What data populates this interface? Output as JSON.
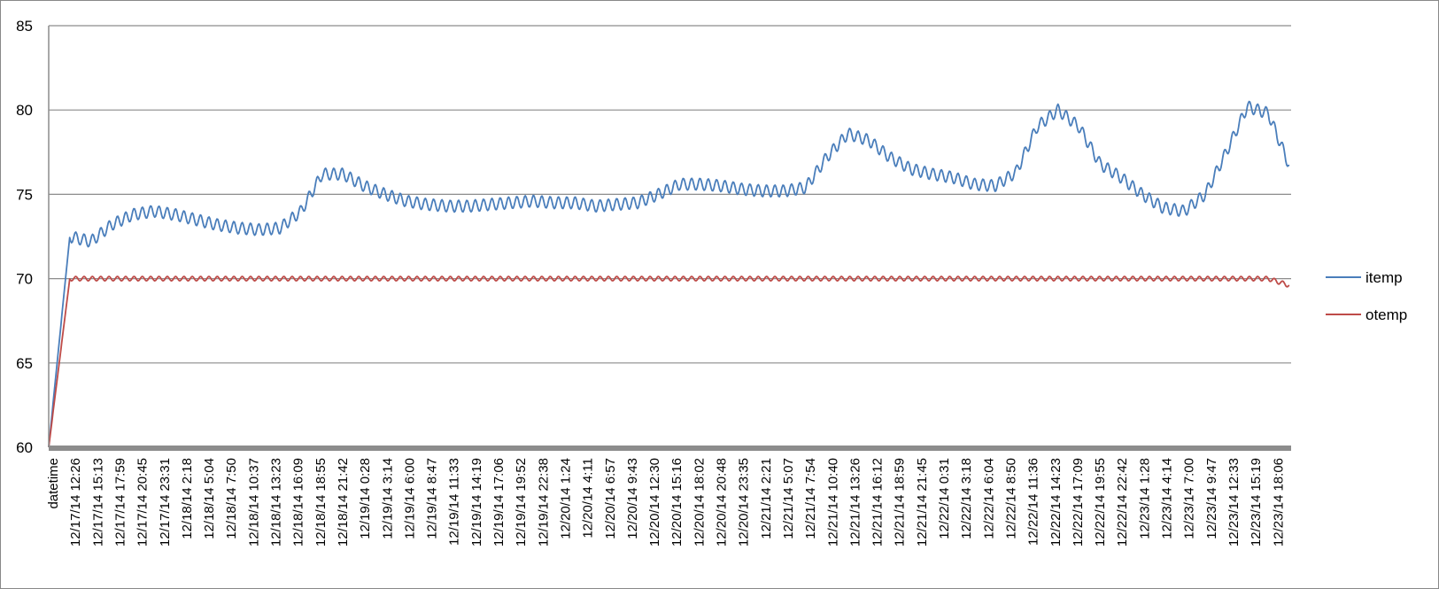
{
  "chart_data": {
    "type": "line",
    "title": "",
    "xlabel": "",
    "ylabel": "",
    "ylim": [
      60,
      85
    ],
    "yticks": [
      60,
      65,
      70,
      75,
      80,
      85
    ],
    "grid": true,
    "legend_position": "right",
    "x_tick_labels": [
      "datetime",
      "12/17/14 12:26",
      "12/17/14 15:13",
      "12/17/14 17:59",
      "12/17/14 20:45",
      "12/17/14 23:31",
      "12/18/14 2:18",
      "12/18/14 5:04",
      "12/18/14 7:50",
      "12/18/14 10:37",
      "12/18/14 13:23",
      "12/18/14 16:09",
      "12/18/14 18:55",
      "12/18/14 21:42",
      "12/19/14 0:28",
      "12/19/14 3:14",
      "12/19/14 6:00",
      "12/19/14 8:47",
      "12/19/14 11:33",
      "12/19/14 14:19",
      "12/19/14 17:06",
      "12/19/14 19:52",
      "12/19/14 22:38",
      "12/20/14 1:24",
      "12/20/14 4:11",
      "12/20/14 6:57",
      "12/20/14 9:43",
      "12/20/14 12:30",
      "12/20/14 15:16",
      "12/20/14 18:02",
      "12/20/14 20:48",
      "12/20/14 23:35",
      "12/21/14 2:21",
      "12/21/14 5:07",
      "12/21/14 7:54",
      "12/21/14 10:40",
      "12/21/14 13:26",
      "12/21/14 16:12",
      "12/21/14 18:59",
      "12/21/14 21:45",
      "12/22/14 0:31",
      "12/22/14 3:18",
      "12/22/14 6:04",
      "12/22/14 8:50",
      "12/22/14 11:36",
      "12/22/14 14:23",
      "12/22/14 17:09",
      "12/22/14 19:55",
      "12/22/14 22:42",
      "12/23/14 1:28",
      "12/23/14 4:14",
      "12/23/14 7:00",
      "12/23/14 9:47",
      "12/23/14 12:33",
      "12/23/14 15:19",
      "12/23/14 18:06"
    ],
    "series": [
      {
        "name": "itemp",
        "color": "#4a7ebb",
        "values": [
          60,
          72.5,
          72.2,
          73.2,
          73.8,
          74.0,
          73.8,
          73.5,
          73.2,
          73.0,
          72.9,
          73.0,
          74.0,
          76.2,
          76.2,
          75.5,
          75.0,
          74.6,
          74.4,
          74.3,
          74.3,
          74.4,
          74.5,
          74.6,
          74.5,
          74.5,
          74.3,
          74.4,
          74.5,
          75.0,
          75.6,
          75.6,
          75.5,
          75.3,
          75.2,
          75.2,
          75.4,
          77.2,
          78.6,
          78.2,
          77.2,
          76.5,
          76.2,
          76.0,
          75.6,
          75.5,
          76.3,
          79.0,
          80.0,
          79.0,
          76.8,
          76.0,
          75.0,
          74.2,
          74.0,
          75.0,
          77.5,
          80.2,
          79.8,
          76.7
        ]
      },
      {
        "name": "otemp",
        "color": "#be4b48",
        "values": [
          60,
          70.0,
          70.0,
          70.0,
          70.0,
          70.0,
          70.0,
          70.0,
          70.0,
          70.0,
          70.0,
          70.0,
          70.0,
          70.0,
          70.0,
          70.0,
          70.0,
          70.0,
          70.0,
          70.0,
          70.0,
          70.0,
          70.0,
          70.0,
          70.0,
          70.0,
          70.0,
          70.0,
          70.0,
          70.0,
          70.0,
          70.0,
          70.0,
          70.0,
          70.0,
          70.0,
          70.0,
          70.0,
          70.0,
          70.0,
          70.0,
          70.0,
          70.0,
          70.0,
          70.0,
          70.0,
          70.0,
          70.0,
          70.0,
          70.0,
          70.0,
          70.0,
          70.0,
          70.0,
          70.0,
          70.0,
          70.0,
          70.0,
          70.0,
          69.6
        ]
      }
    ]
  }
}
